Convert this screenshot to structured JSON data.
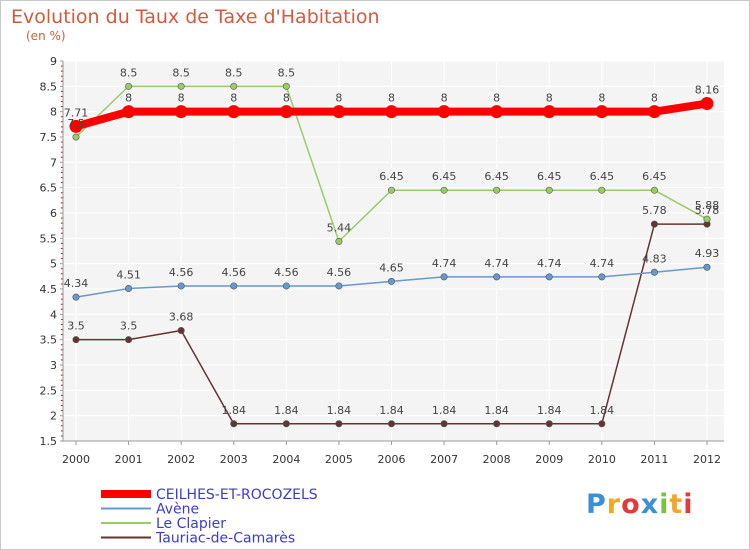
{
  "title": "Evolution du Taux de Taxe d'Habitation",
  "subtitle": "(en %)",
  "logo": {
    "text": "Proxiti",
    "letters": [
      {
        "ch": "P",
        "color": "#3a8fd6"
      },
      {
        "ch": "r",
        "color": "#f5a623"
      },
      {
        "ch": "o",
        "color": "#e03c3c"
      },
      {
        "ch": "x",
        "color": "#3a8fd6"
      },
      {
        "ch": "i",
        "color": "#7cc242"
      },
      {
        "ch": "t",
        "color": "#f5a623"
      },
      {
        "ch": "i",
        "color": "#e03c3c"
      }
    ]
  },
  "chart_data": {
    "type": "line",
    "title": "Evolution du Taux de Taxe d'Habitation",
    "subtitle": "(en %)",
    "x": [
      "2000",
      "2001",
      "2002",
      "2003",
      "2004",
      "2005",
      "2006",
      "2007",
      "2008",
      "2009",
      "2010",
      "2011",
      "2012"
    ],
    "ylim": [
      1.5,
      9
    ],
    "yticks": [
      "1.5",
      "2",
      "2.5",
      "3",
      "3.5",
      "4",
      "4.5",
      "5",
      "5.5",
      "6",
      "6.5",
      "7",
      "7.5",
      "8",
      "8.5",
      "9"
    ],
    "grid": true,
    "legend_position": "bottom-left",
    "series": [
      {
        "name": "CEILHES-ET-ROCOZELS",
        "color": "#ff0000",
        "thick": true,
        "values": [
          7.71,
          8,
          8,
          8,
          8,
          8,
          8,
          8,
          8,
          8,
          8,
          8,
          8.16
        ],
        "labels": [
          "7.71",
          "8",
          "8",
          "8",
          "8",
          "8",
          "8",
          "8",
          "8",
          "8",
          "8",
          "8",
          "8.16"
        ]
      },
      {
        "name": "Avène",
        "color": "#6699cc",
        "values": [
          4.34,
          4.51,
          4.56,
          4.56,
          4.56,
          4.56,
          4.65,
          4.74,
          4.74,
          4.74,
          4.74,
          4.83,
          4.93
        ],
        "labels": [
          "4.34",
          "4.51",
          "4.56",
          "4.56",
          "4.56",
          "4.56",
          "4.65",
          "4.74",
          "4.74",
          "4.74",
          "4.74",
          "4.83",
          "4.93"
        ]
      },
      {
        "name": "Le Clapier",
        "color": "#99cc66",
        "values": [
          7.5,
          8.5,
          8.5,
          8.5,
          8.5,
          5.44,
          6.45,
          6.45,
          6.45,
          6.45,
          6.45,
          6.45,
          5.88
        ],
        "labels": [
          "7.5",
          "8.5",
          "8.5",
          "8.5",
          "8.5",
          "5.44",
          "6.45",
          "6.45",
          "6.45",
          "6.45",
          "6.45",
          "6.45",
          "5.88"
        ]
      },
      {
        "name": "Tauriac-de-Camarès",
        "color": "#663333",
        "values": [
          3.5,
          3.5,
          3.68,
          1.84,
          1.84,
          1.84,
          1.84,
          1.84,
          1.84,
          1.84,
          1.84,
          5.78,
          5.78
        ],
        "labels": [
          "3.5",
          "3.5",
          "3.68",
          "1.84",
          "1.84",
          "1.84",
          "1.84",
          "1.84",
          "1.84",
          "1.84",
          "1.84",
          "5.78",
          "5.78"
        ]
      }
    ]
  }
}
